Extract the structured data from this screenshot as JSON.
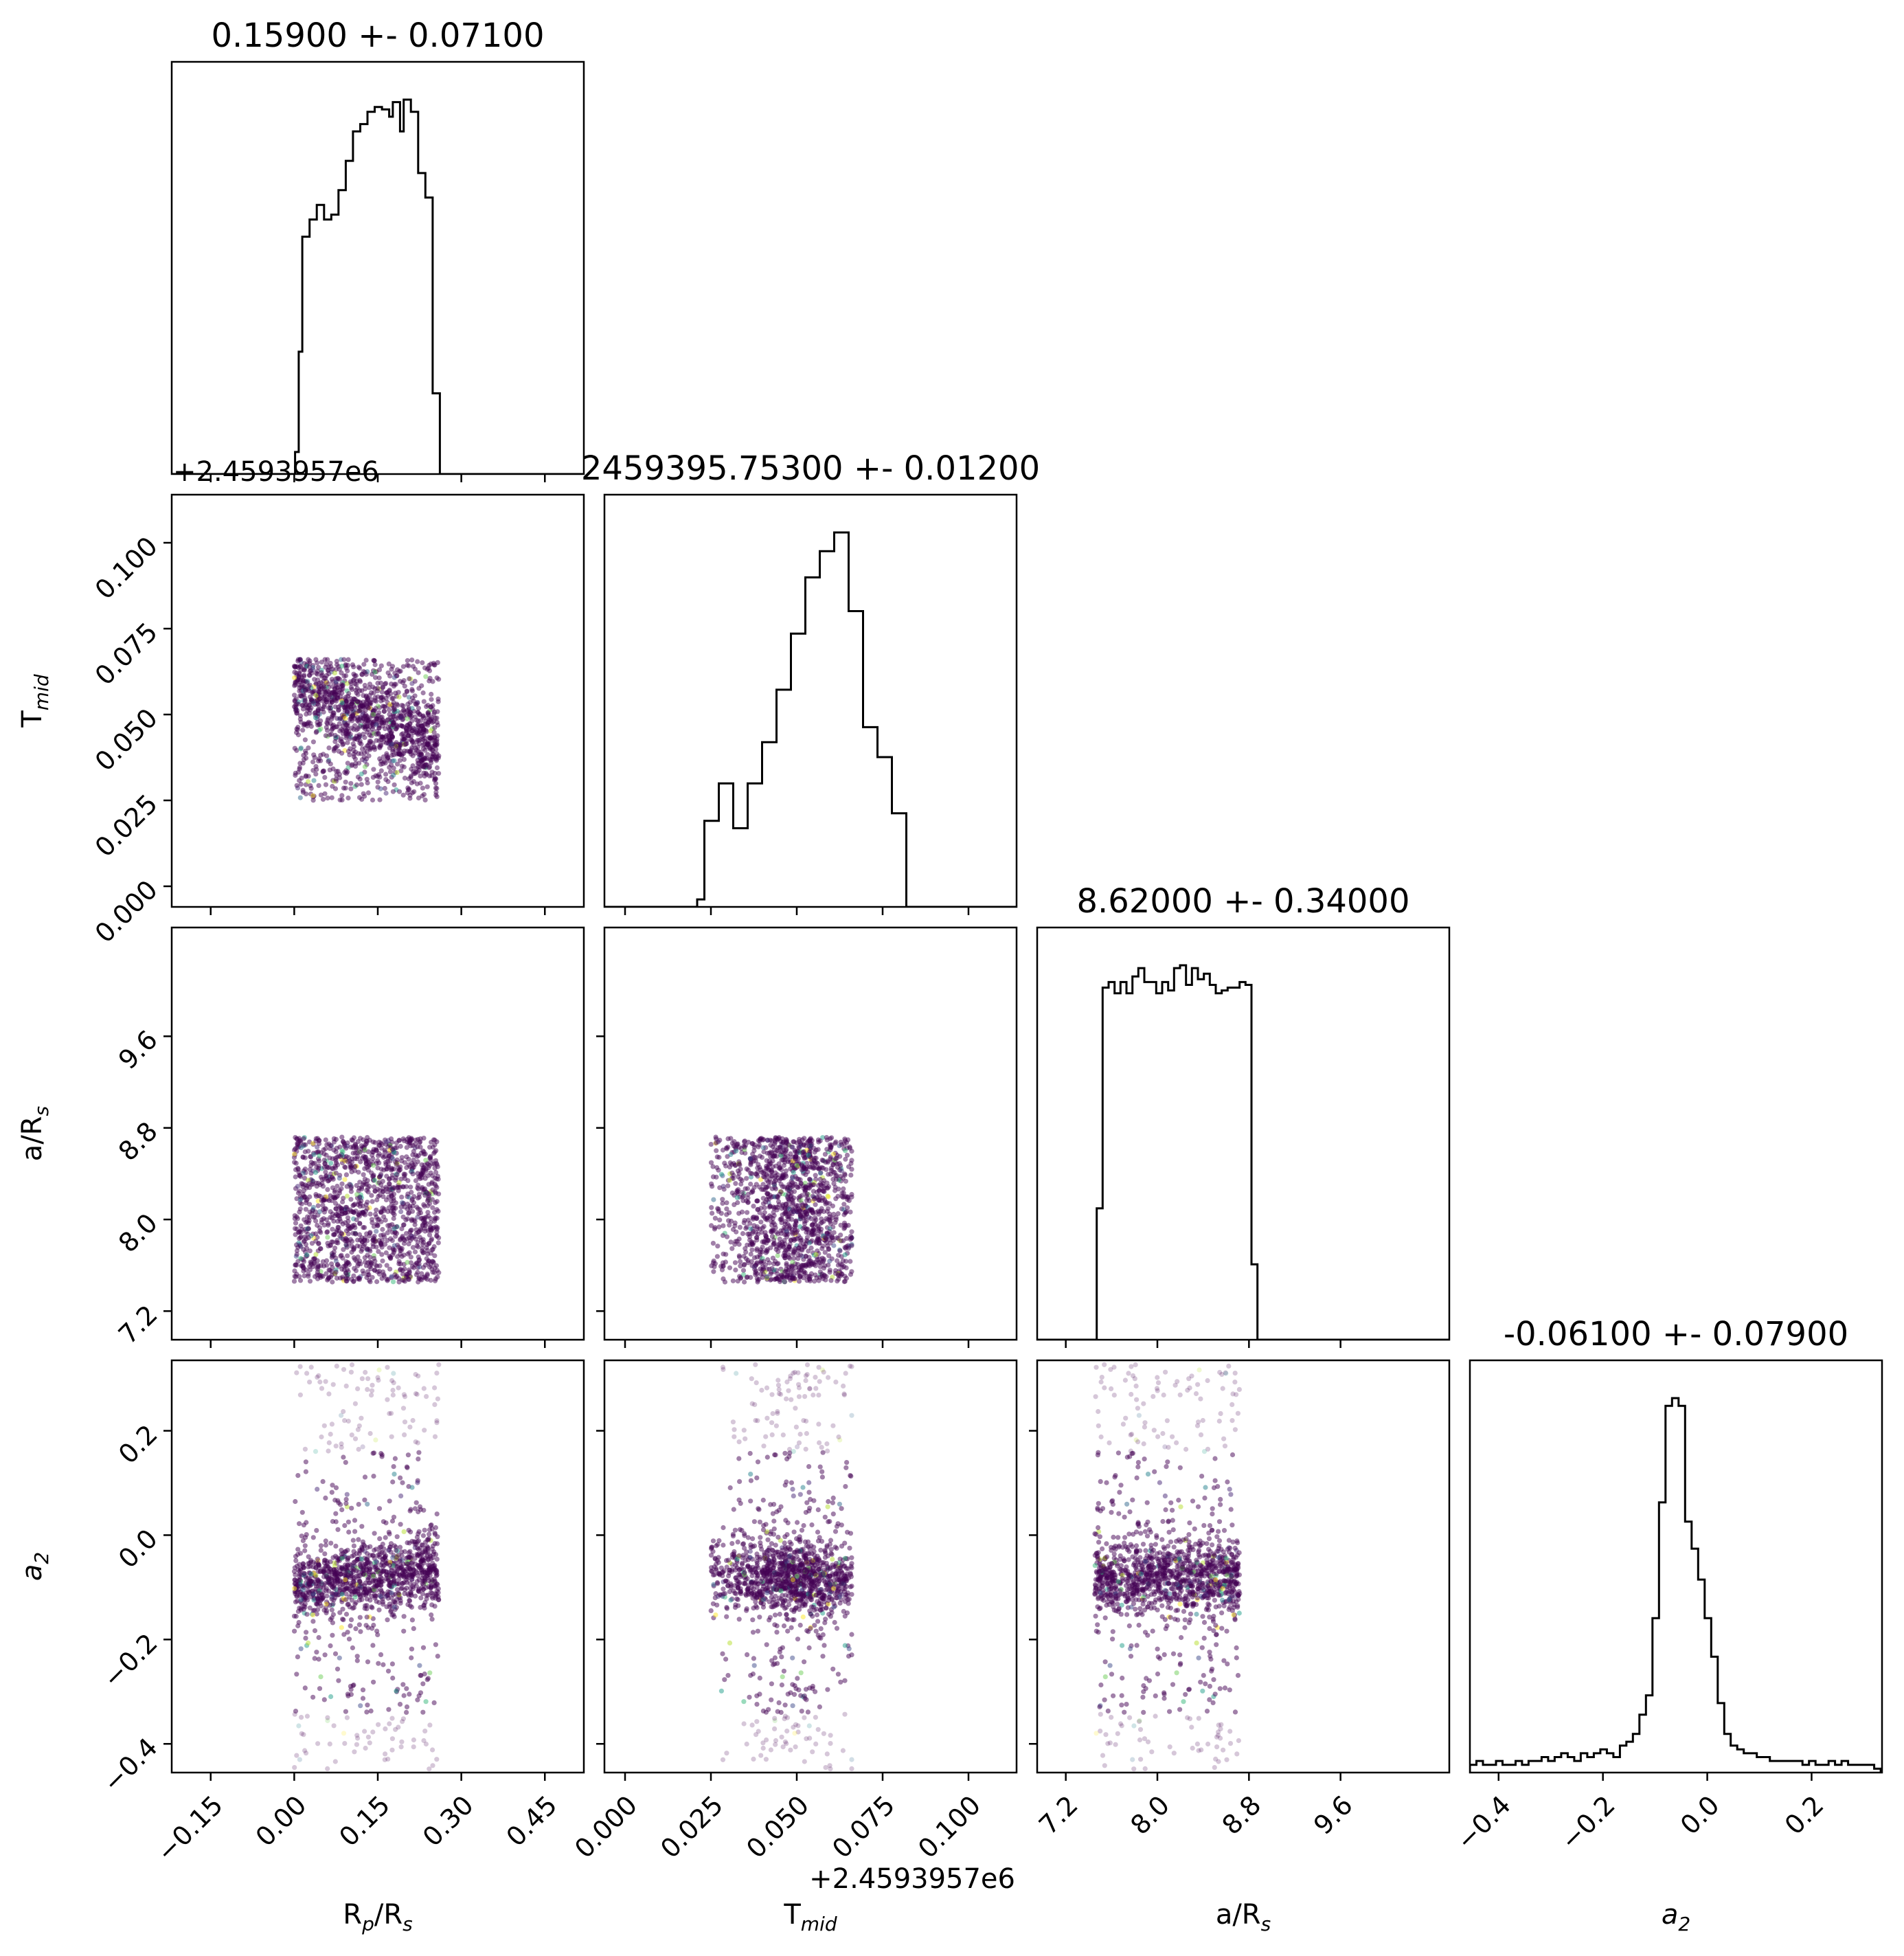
{
  "figure": {
    "offset_label": "+2.4593957e6"
  },
  "chart_data": {
    "type": "corner",
    "parameters": [
      {
        "key": "rp",
        "label_main": "R",
        "label_sub": "p",
        "label_tail": "/R",
        "label_tail_sub": "s",
        "range": [
          -0.22,
          0.52
        ],
        "ticks": [
          -0.15,
          0.0,
          0.15,
          0.3,
          0.45
        ],
        "tick_labels": [
          "−0.15",
          "0.00",
          "0.15",
          "0.30",
          "0.45"
        ],
        "title": "0.15900 +- 0.07100"
      },
      {
        "key": "tmid",
        "label_main": "T",
        "label_sub": "mid",
        "label_tail": "",
        "label_tail_sub": "",
        "range": [
          -0.006,
          0.114
        ],
        "ticks": [
          0.0,
          0.025,
          0.05,
          0.075,
          0.1
        ],
        "tick_labels": [
          "0.000",
          "0.025",
          "0.050",
          "0.075",
          "0.100"
        ],
        "title": "2459395.75300 +- 0.01200",
        "offset_text": "+2.4593957e6"
      },
      {
        "key": "ars",
        "label_main": "a/R",
        "label_sub": "s",
        "label_tail": "",
        "label_tail_sub": "",
        "range": [
          6.95,
          10.55
        ],
        "ticks": [
          7.2,
          8.0,
          8.8,
          9.6
        ],
        "tick_labels": [
          "7.2",
          "8.0",
          "8.8",
          "9.6"
        ],
        "title": "8.62000 +- 0.34000"
      },
      {
        "key": "a2",
        "label_main": "a",
        "label_sub": "2",
        "label_tail": "",
        "label_tail_sub": "",
        "italic": true,
        "range": [
          -0.455,
          0.335
        ],
        "ticks": [
          -0.4,
          -0.2,
          0.0,
          0.2
        ],
        "tick_labels": [
          "−0.4",
          "−0.2",
          "0.0",
          "0.2"
        ],
        "title": "-0.06100 +- 0.07900"
      }
    ],
    "histograms": {
      "rp": {
        "edges_start": -0.005,
        "bin_width": 0.0065,
        "counts": [
          0,
          9,
          50,
          97,
          97,
          104,
          104,
          110,
          110,
          104,
          104,
          106,
          106,
          116,
          116,
          128,
          128,
          140,
          140,
          143,
          143,
          148,
          148,
          150,
          150,
          149,
          149,
          146,
          152,
          152,
          140,
          153,
          153,
          148,
          148,
          123,
          123,
          113,
          113,
          33,
          33,
          0,
          0
        ]
      },
      "tmid": {
        "edges_start": 0.021,
        "bin_width": 0.0021,
        "counts": [
          2,
          23,
          23,
          33,
          33,
          21,
          21,
          33,
          33,
          44,
          44,
          58,
          58,
          73,
          73,
          88,
          88,
          95,
          95,
          100,
          100,
          79,
          79,
          48,
          48,
          40,
          40,
          25,
          25,
          0
        ]
      },
      "ars": {
        "edges_start": 7.47,
        "bin_width": 0.052,
        "counts": [
          47,
          126,
          128,
          124,
          128,
          124,
          130,
          133,
          128,
          128,
          124,
          128,
          125,
          133,
          134,
          127,
          133,
          129,
          131,
          127,
          124,
          125,
          126,
          126,
          128,
          127,
          27,
          0,
          0
        ]
      },
      "a2": {
        "edges_start": -0.455,
        "bin_width": 0.0125,
        "counts": [
          2,
          3,
          2,
          2,
          3,
          2,
          2,
          3,
          2,
          3,
          3,
          4,
          3,
          4,
          5,
          4,
          3,
          5,
          4,
          5,
          6,
          5,
          4,
          7,
          8,
          10,
          15,
          20,
          40,
          70,
          95,
          97,
          95,
          65,
          58,
          50,
          40,
          30,
          18,
          10,
          7,
          6,
          5,
          5,
          4,
          4,
          3,
          3,
          3,
          3,
          3,
          2,
          3,
          2,
          2,
          3,
          2,
          3,
          2,
          2,
          2,
          2,
          1,
          0
        ]
      }
    },
    "scatter_boxes": {
      "rp": [
        0.0,
        0.26
      ],
      "tmid": [
        0.025,
        0.066
      ],
      "ars": [
        7.45,
        8.72
      ],
      "a2": [
        -0.455,
        0.335
      ]
    },
    "colormap": [
      "#440154",
      "#482878",
      "#3e4a89",
      "#31688e",
      "#26828e",
      "#1f9e89",
      "#35b779",
      "#6ece58",
      "#b5de2b",
      "#fde725"
    ],
    "num_points": 1400
  }
}
